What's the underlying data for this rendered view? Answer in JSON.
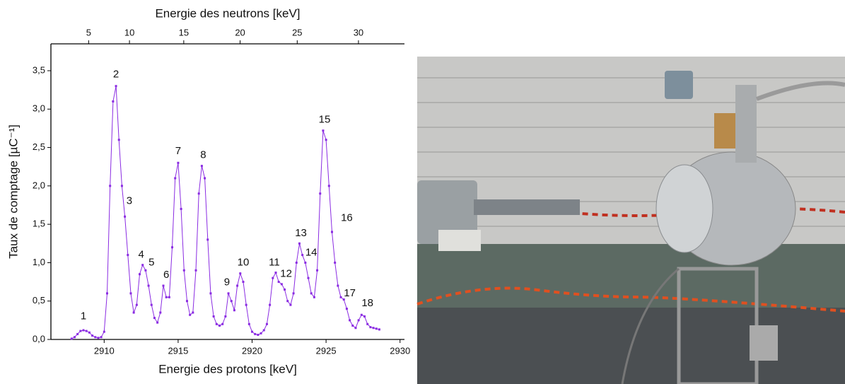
{
  "chart_data": {
    "type": "line",
    "title": "Energie des neutrons [keV]",
    "x_label": "Energie des protons [keV]",
    "y_label": "Taux de comptage [µC⁻¹]",
    "color": "#8a2be2",
    "x": [
      2907.8,
      2908.0,
      2908.2,
      2908.4,
      2908.6,
      2908.8,
      2909.0,
      2909.2,
      2909.4,
      2909.6,
      2909.8,
      2910.0,
      2910.2,
      2910.4,
      2910.6,
      2910.8,
      2911.0,
      2911.2,
      2911.4,
      2911.6,
      2911.8,
      2912.0,
      2912.2,
      2912.4,
      2912.6,
      2912.8,
      2913.0,
      2913.2,
      2913.4,
      2913.6,
      2913.8,
      2914.0,
      2914.2,
      2914.4,
      2914.6,
      2914.8,
      2915.0,
      2915.2,
      2915.4,
      2915.6,
      2915.8,
      2916.0,
      2916.2,
      2916.4,
      2916.6,
      2916.8,
      2917.0,
      2917.2,
      2917.4,
      2917.6,
      2917.8,
      2918.0,
      2918.2,
      2918.4,
      2918.6,
      2918.8,
      2919.0,
      2919.2,
      2919.4,
      2919.6,
      2919.8,
      2920.0,
      2920.2,
      2920.4,
      2920.6,
      2920.8,
      2921.0,
      2921.2,
      2921.4,
      2921.6,
      2921.8,
      2922.0,
      2922.2,
      2922.4,
      2922.6,
      2922.8,
      2923.0,
      2923.2,
      2923.4,
      2923.6,
      2923.8,
      2924.0,
      2924.2,
      2924.4,
      2924.6,
      2924.8,
      2925.0,
      2925.2,
      2925.4,
      2925.6,
      2925.8,
      2926.0,
      2926.2,
      2926.4,
      2926.6,
      2926.8,
      2927.0,
      2927.2,
      2927.4,
      2927.6,
      2927.8,
      2928.0,
      2928.2,
      2928.4,
      2928.6
    ],
    "values": [
      0.01,
      0.03,
      0.07,
      0.11,
      0.12,
      0.11,
      0.09,
      0.05,
      0.03,
      0.02,
      0.03,
      0.1,
      0.6,
      2.0,
      3.1,
      3.3,
      2.6,
      2.0,
      1.6,
      1.1,
      0.6,
      0.35,
      0.45,
      0.85,
      0.97,
      0.9,
      0.7,
      0.45,
      0.28,
      0.22,
      0.35,
      0.7,
      0.55,
      0.55,
      1.2,
      2.1,
      2.3,
      1.7,
      0.9,
      0.5,
      0.32,
      0.35,
      0.9,
      1.9,
      2.26,
      2.1,
      1.3,
      0.6,
      0.3,
      0.2,
      0.18,
      0.2,
      0.3,
      0.6,
      0.5,
      0.38,
      0.7,
      0.86,
      0.75,
      0.45,
      0.2,
      0.1,
      0.07,
      0.06,
      0.08,
      0.12,
      0.2,
      0.45,
      0.8,
      0.87,
      0.75,
      0.72,
      0.65,
      0.5,
      0.45,
      0.6,
      1.0,
      1.25,
      1.1,
      1.0,
      0.8,
      0.6,
      0.55,
      0.9,
      1.9,
      2.72,
      2.6,
      2.0,
      1.4,
      1.0,
      0.7,
      0.55,
      0.52,
      0.4,
      0.25,
      0.18,
      0.15,
      0.25,
      0.32,
      0.3,
      0.2,
      0.16,
      0.15,
      0.14,
      0.13
    ],
    "xlim": [
      2906.4,
      2930.3
    ],
    "ylim": [
      0,
      3.85
    ],
    "xticks": [
      2910,
      2915,
      2920,
      2925,
      2930
    ],
    "yticks": [
      {
        "value": 0,
        "label": "0,0"
      },
      {
        "value": 0.5,
        "label": "0,5"
      },
      {
        "value": 1,
        "label": "1,0"
      },
      {
        "value": 1.5,
        "label": "1,5"
      },
      {
        "value": 2,
        "label": "2,0"
      },
      {
        "value": 2.5,
        "label": "2,5"
      },
      {
        "value": 3,
        "label": "3,0"
      },
      {
        "value": 3.5,
        "label": "3,5"
      }
    ],
    "x2ticks": [
      {
        "value": 2908.95,
        "label": "5"
      },
      {
        "value": 2911.71,
        "label": "10"
      },
      {
        "value": 2915.38,
        "label": "15"
      },
      {
        "value": 2919.19,
        "label": "20"
      },
      {
        "value": 2923.05,
        "label": "25"
      },
      {
        "value": 2927.19,
        "label": "30"
      }
    ],
    "annotations": [
      {
        "text": "1",
        "x": 2908.6,
        "y": 0.3
      },
      {
        "text": "2",
        "x": 2910.8,
        "y": 3.45
      },
      {
        "text": "3",
        "x": 2911.7,
        "y": 1.8
      },
      {
        "text": "4",
        "x": 2912.5,
        "y": 1.1
      },
      {
        "text": "5",
        "x": 2913.2,
        "y": 1.0
      },
      {
        "text": "6",
        "x": 2914.2,
        "y": 0.84
      },
      {
        "text": "7",
        "x": 2915.0,
        "y": 2.45
      },
      {
        "text": "8",
        "x": 2916.7,
        "y": 2.4
      },
      {
        "text": "9",
        "x": 2918.3,
        "y": 0.74
      },
      {
        "text": "10",
        "x": 2919.4,
        "y": 1.0
      },
      {
        "text": "11",
        "x": 2921.5,
        "y": 1.0
      },
      {
        "text": "12",
        "x": 2922.3,
        "y": 0.85
      },
      {
        "text": "13",
        "x": 2923.3,
        "y": 1.38
      },
      {
        "text": "14",
        "x": 2924.0,
        "y": 1.13
      },
      {
        "text": "15",
        "x": 2924.9,
        "y": 2.86
      },
      {
        "text": "16",
        "x": 2926.4,
        "y": 1.58
      },
      {
        "text": "17",
        "x": 2926.6,
        "y": 0.6
      },
      {
        "text": "18",
        "x": 2927.8,
        "y": 0.47
      }
    ]
  }
}
